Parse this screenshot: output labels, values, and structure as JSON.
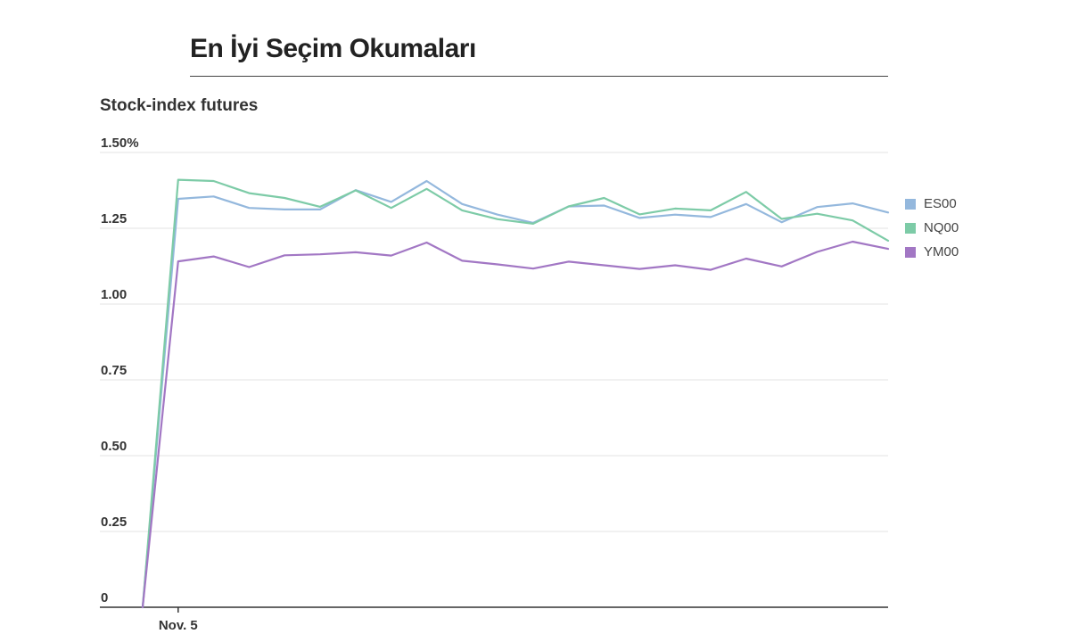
{
  "page": {
    "title": "En İyi Seçim Okumaları"
  },
  "chart_data": {
    "type": "line",
    "title": "Stock-index futures",
    "xlabel": "",
    "ylabel": "",
    "y_unit_suffix": "%",
    "ylim": [
      0,
      1.5
    ],
    "y_ticks": [
      0,
      0.25,
      0.5,
      0.75,
      1.0,
      1.25,
      1.5
    ],
    "y_tick_labels": [
      "0",
      "0.25",
      "0.50",
      "0.75",
      "1.00",
      "1.25",
      "1.50%"
    ],
    "x_tick_labels": [
      {
        "label": "Nov. 5",
        "at_point": 1
      }
    ],
    "grid": true,
    "legend_position": "right",
    "series": [
      {
        "name": "ES00",
        "color": "#94b8dd",
        "values": [
          0,
          1.347,
          1.355,
          1.317,
          1.312,
          1.312,
          1.376,
          1.337,
          1.406,
          1.33,
          1.295,
          1.268,
          1.322,
          1.325,
          1.284,
          1.295,
          1.287,
          1.33,
          1.27,
          1.32,
          1.332,
          1.302
        ]
      },
      {
        "name": "NQ00",
        "color": "#7dcba7",
        "values": [
          0,
          1.41,
          1.406,
          1.366,
          1.35,
          1.321,
          1.375,
          1.317,
          1.38,
          1.309,
          1.28,
          1.265,
          1.322,
          1.35,
          1.296,
          1.315,
          1.309,
          1.37,
          1.281,
          1.298,
          1.276,
          1.209
        ]
      },
      {
        "name": "YM00",
        "color": "#a277c4",
        "values": [
          0,
          1.141,
          1.157,
          1.122,
          1.161,
          1.164,
          1.171,
          1.16,
          1.203,
          1.143,
          1.131,
          1.117,
          1.14,
          1.128,
          1.116,
          1.128,
          1.113,
          1.15,
          1.124,
          1.172,
          1.206,
          1.182
        ]
      }
    ]
  }
}
